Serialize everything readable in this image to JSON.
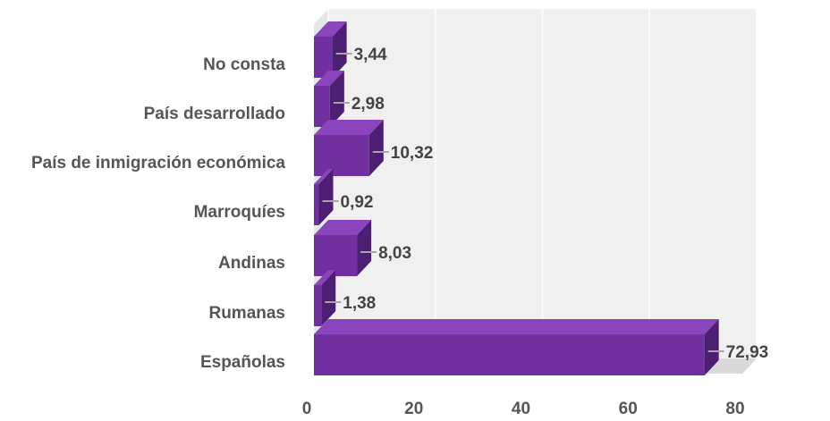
{
  "chart_data": {
    "type": "bar",
    "orientation": "horizontal",
    "style": "3d",
    "categories": [
      "No consta",
      "País desarrollado",
      "País de inmigración económica",
      "Marroquíes",
      "Andinas",
      "Rumanas",
      "Españolas"
    ],
    "values": [
      3.44,
      2.98,
      10.32,
      0.92,
      8.03,
      1.38,
      72.93
    ],
    "value_labels": [
      "3,44",
      "2,98",
      "10,32",
      "0,92",
      "8,03",
      "1,38",
      "72,93"
    ],
    "xlim": [
      0,
      80
    ],
    "xticks": [
      0,
      20,
      40,
      60,
      80
    ],
    "xtick_labels": [
      "0",
      "20",
      "40",
      "60",
      "80"
    ],
    "grid": true,
    "legend": "none",
    "title": "",
    "xlabel": "",
    "ylabel": "",
    "colors": {
      "bar_front": "#7030a0",
      "bar_top": "#8a45bd",
      "bar_side": "#4c1f72",
      "wall": "#f0f0f0",
      "floor": "#d9d9d9",
      "gridline": "#ffffff",
      "leader": "#a6a6a6"
    }
  }
}
